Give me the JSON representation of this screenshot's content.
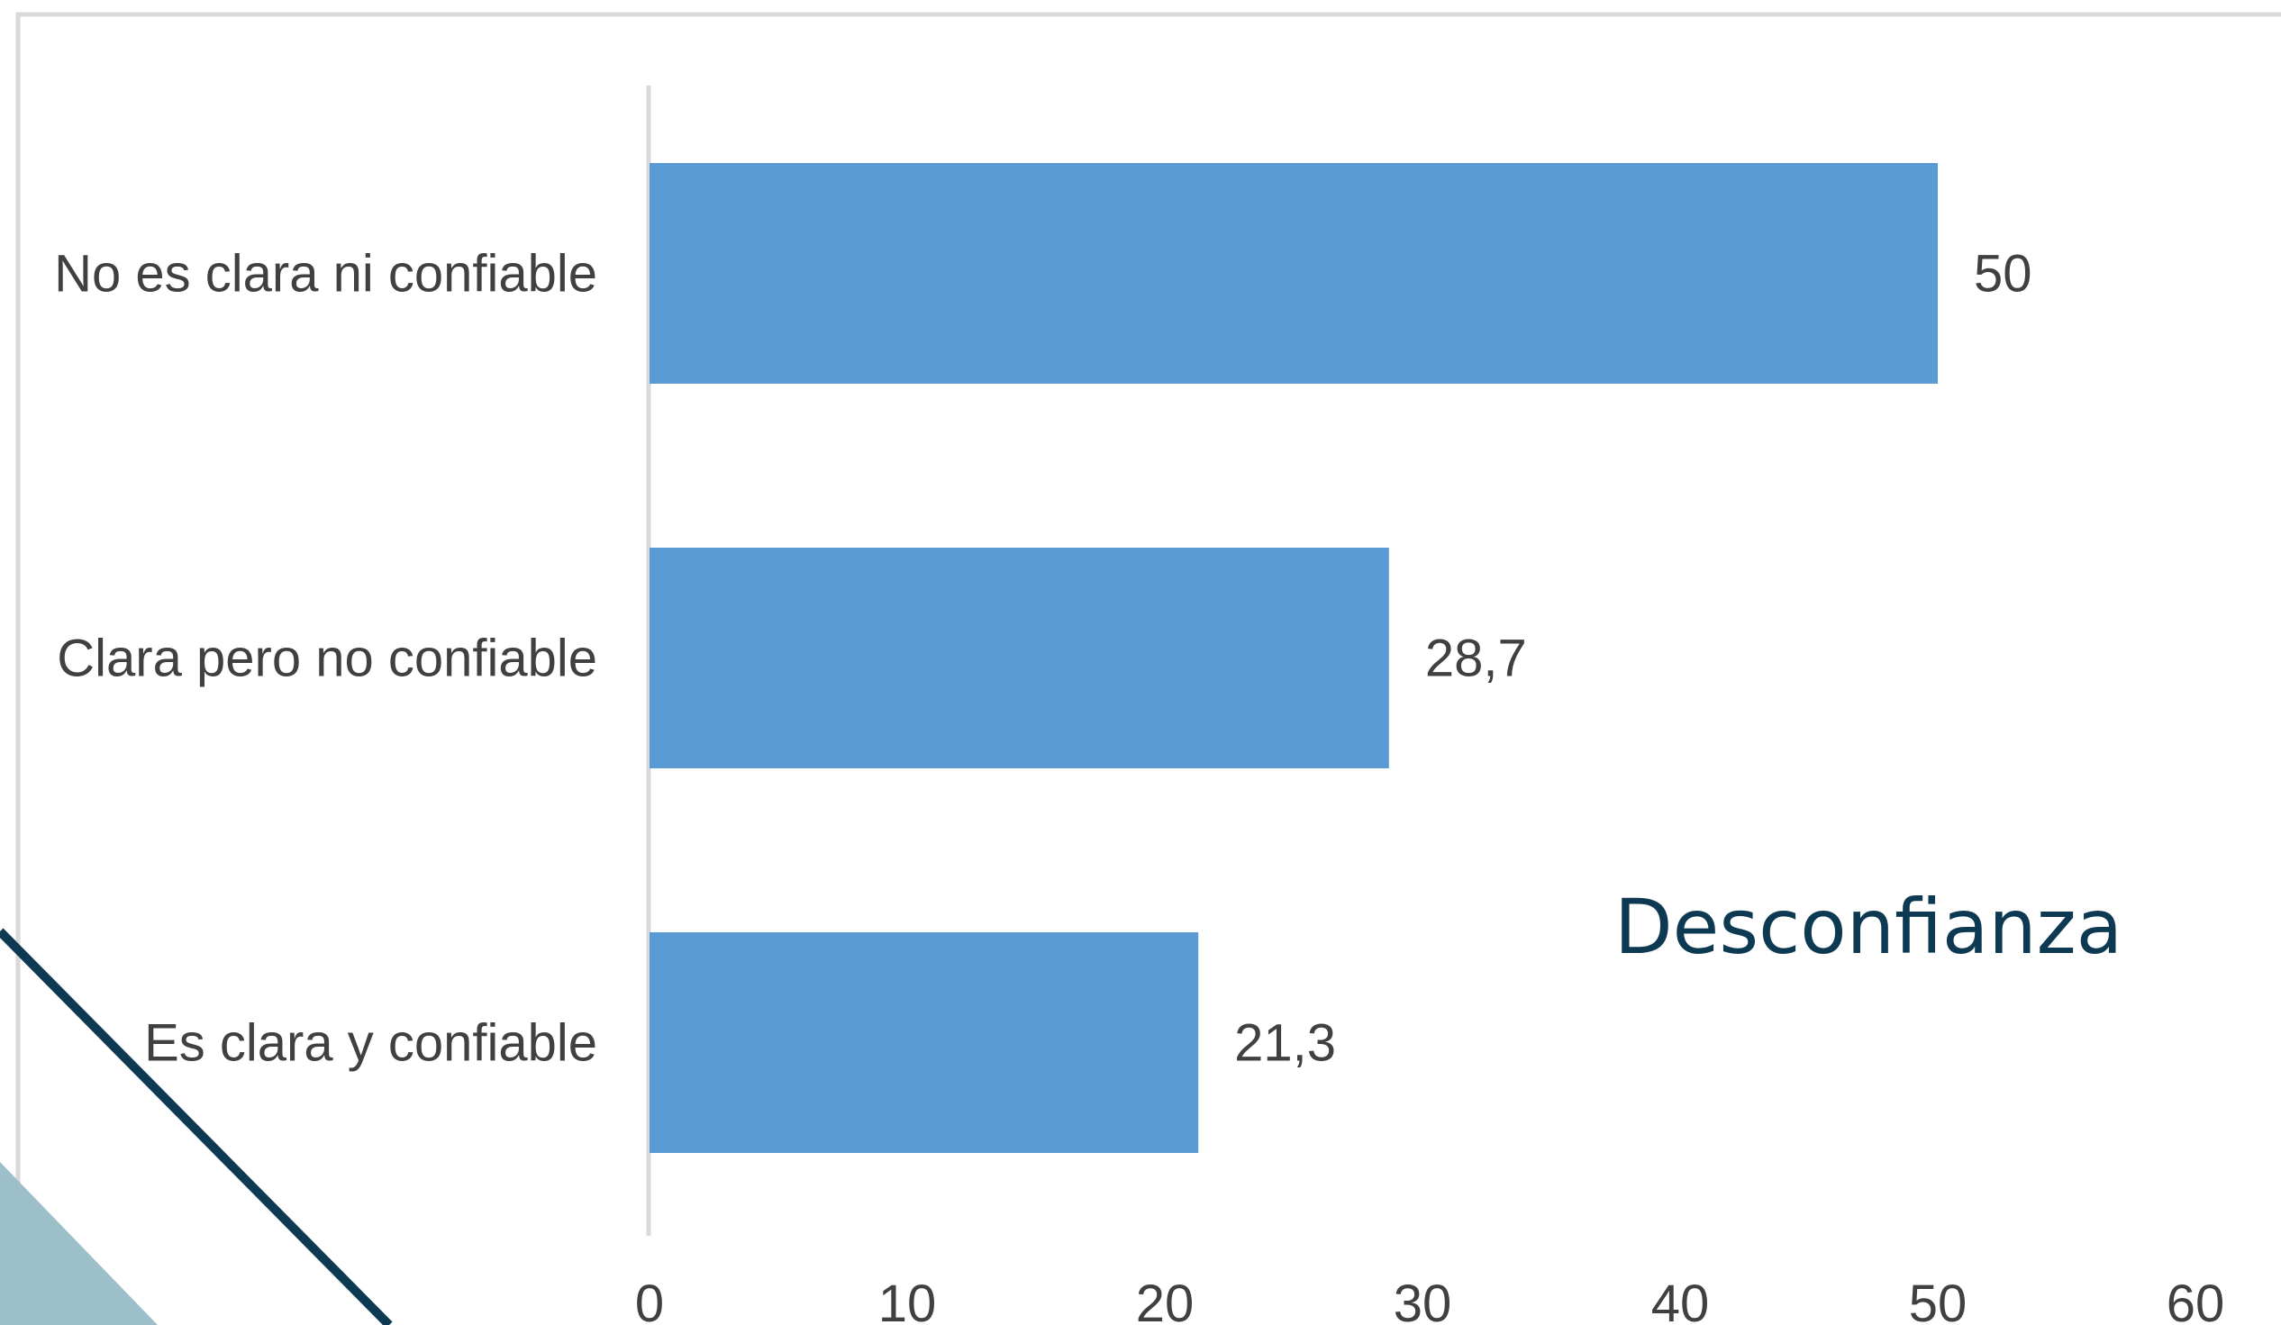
{
  "chart_data": {
    "type": "bar",
    "orientation": "horizontal",
    "categories": [
      "No es clara ni confiable",
      "Clara pero no confiable",
      "Es clara y confiable"
    ],
    "values": [
      50,
      28.7,
      21.3
    ],
    "value_labels": [
      "50",
      "28,7",
      "21,3"
    ],
    "x_ticks": [
      "0",
      "10",
      "20",
      "30",
      "40",
      "50",
      "60"
    ],
    "xlim": [
      0,
      60
    ],
    "grid": false,
    "legend": "none",
    "annotation": "Desconfianza",
    "bar_color": "#5b9bd5"
  },
  "decor": {
    "line_color": "#0d3a52",
    "triangle_color": "#9dbfc9",
    "frame_color": "#d9d9d9"
  }
}
